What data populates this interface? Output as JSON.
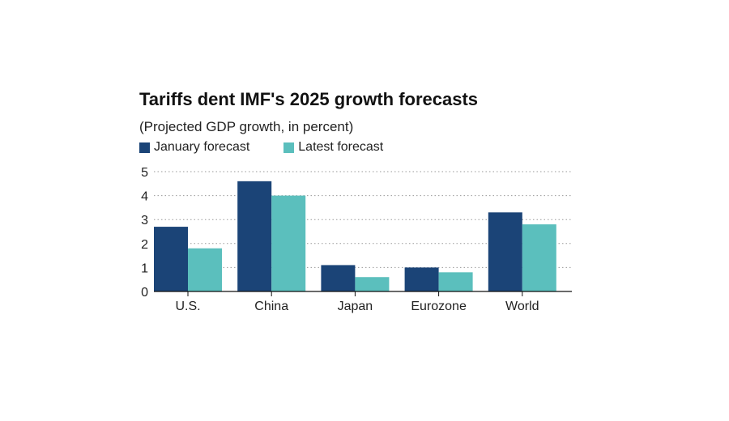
{
  "chart_data": {
    "type": "bar",
    "title": "Tariffs dent IMF's 2025 growth forecasts",
    "subtitle": "(Projected GDP growth, in percent)",
    "categories": [
      "U.S.",
      "China",
      "Japan",
      "Eurozone",
      "World"
    ],
    "series": [
      {
        "name": "January forecast",
        "color": "#1b4477",
        "values": [
          2.7,
          4.6,
          1.1,
          1.0,
          3.3
        ]
      },
      {
        "name": "Latest forecast",
        "color": "#5bbfbd",
        "values": [
          1.8,
          4.0,
          0.6,
          0.8,
          2.8
        ]
      }
    ],
    "ylim": [
      0,
      5
    ],
    "yticks": [
      0,
      1,
      2,
      3,
      4,
      5
    ],
    "grid": true,
    "legend_position": "top-left"
  }
}
